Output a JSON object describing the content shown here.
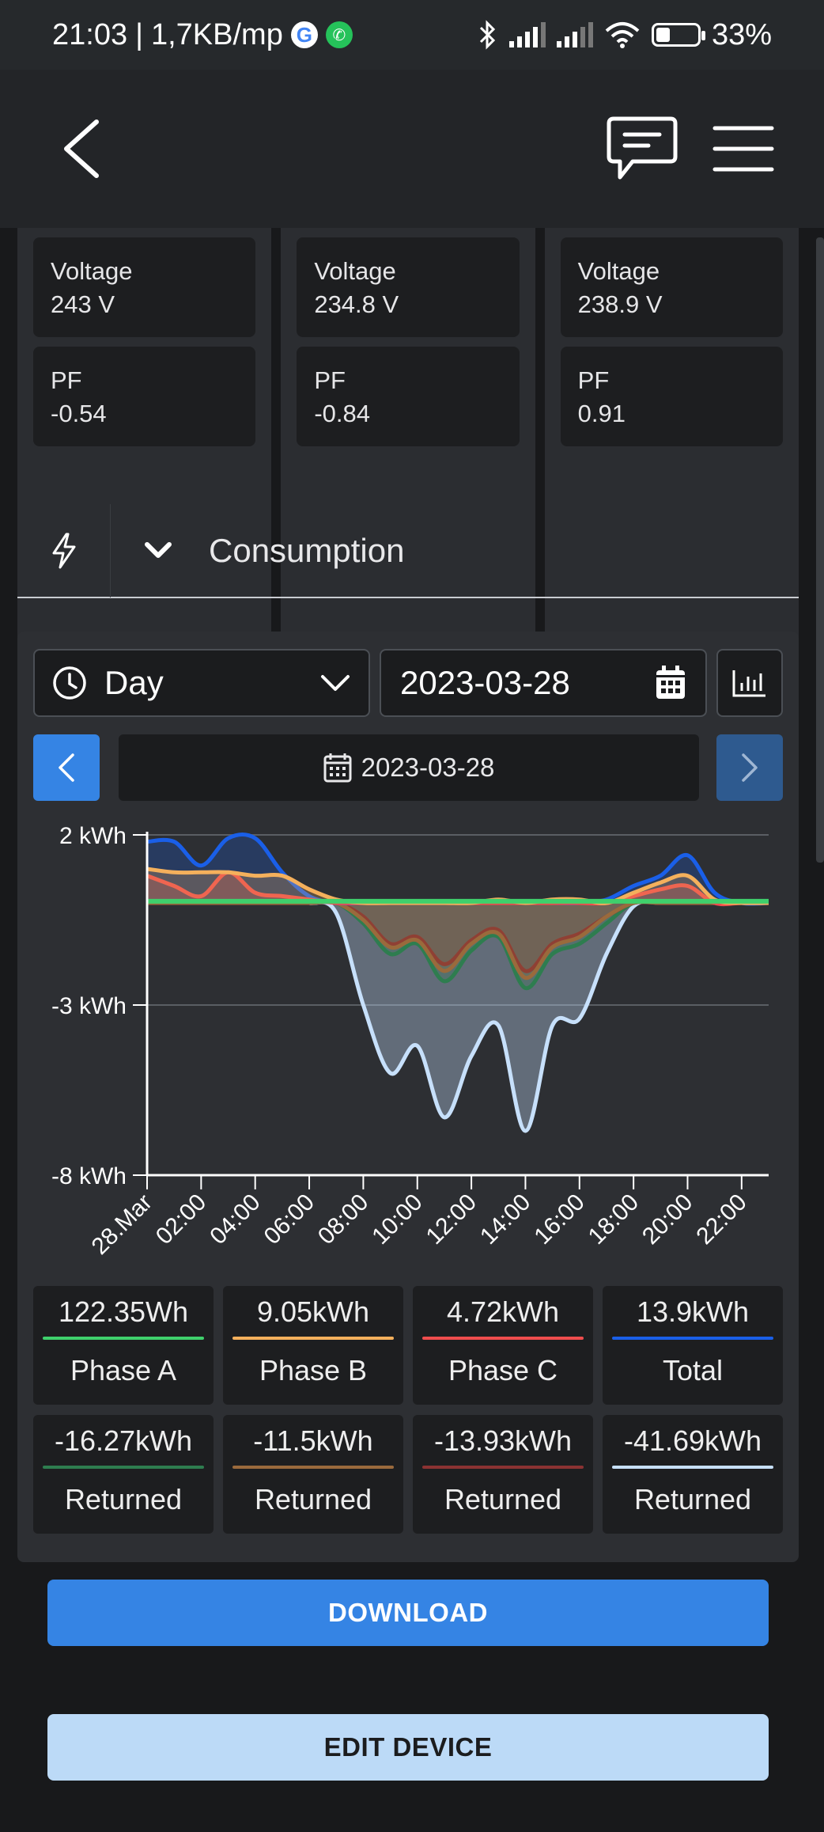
{
  "status": {
    "time": "21:03",
    "speed": "1,7KB/mp",
    "battery": "33%",
    "battery_level": 0.33
  },
  "appbar": {
    "back_icon": "chevron-left-icon",
    "chat_icon": "chat-bubble-icon",
    "menu_icon": "hamburger-menu-icon"
  },
  "phases": [
    {
      "voltage_label": "Voltage",
      "voltage": "243 V",
      "pf_label": "PF",
      "pf": "-0.54"
    },
    {
      "voltage_label": "Voltage",
      "voltage": "234.8 V",
      "pf_label": "PF",
      "pf": "-0.84"
    },
    {
      "voltage_label": "Voltage",
      "voltage": "238.9 V",
      "pf_label": "PF",
      "pf": "0.91"
    }
  ],
  "consumption": {
    "title": "Consumption"
  },
  "period": {
    "selected": "Day",
    "date_input": "2023-03-28",
    "current_date": "2023-03-28"
  },
  "colors": {
    "phaseA": "#3fd06c",
    "phaseB": "#f4b05c",
    "phaseC": "#ef4d4d",
    "total": "#1a5fe8",
    "retA": "#2e7d4f",
    "retB": "#9a6a3c",
    "retC": "#8b3232",
    "retTotal": "#c7e0fb",
    "primary": "#3584e4",
    "secondary": "#bcdaf7"
  },
  "chart_data": {
    "type": "area",
    "ylim": [
      -8,
      2
    ],
    "y_ticks": [
      "2 kWh",
      "-3 kWh",
      "-8 kWh"
    ],
    "x_ticks": [
      "28.Mar",
      "02:00",
      "04:00",
      "06:00",
      "08:00",
      "10:00",
      "12:00",
      "14:00",
      "16:00",
      "18:00",
      "20:00",
      "22:00"
    ],
    "x": [
      0,
      1,
      2,
      3,
      4,
      5,
      6,
      7,
      8,
      9,
      10,
      11,
      12,
      13,
      14,
      15,
      16,
      17,
      18,
      19,
      20,
      21,
      22,
      23
    ],
    "series": [
      {
        "name": "Total",
        "values": [
          1.8,
          1.8,
          1.1,
          1.9,
          1.9,
          0.9,
          0.2,
          0,
          0,
          0,
          0,
          0,
          0,
          0,
          0,
          0,
          0,
          0.1,
          0.5,
          0.8,
          1.4,
          0.3,
          0,
          0
        ]
      },
      {
        "name": "Phase B",
        "values": [
          1,
          0.9,
          0.9,
          0.9,
          0.8,
          0.8,
          0.4,
          0.1,
          0,
          0,
          0,
          0,
          0,
          0.1,
          0,
          0.1,
          0.1,
          0,
          0.3,
          0.6,
          0.8,
          0.1,
          0,
          0
        ]
      },
      {
        "name": "Phase C",
        "values": [
          0.8,
          0.5,
          0.2,
          0.9,
          0.3,
          0.2,
          0.1,
          0,
          0,
          0,
          0,
          0,
          0,
          0,
          0,
          0,
          0,
          0,
          0.2,
          0.4,
          0.5,
          0,
          0,
          0
        ]
      },
      {
        "name": "Phase A",
        "values": [
          0.05,
          0.05,
          0.05,
          0.05,
          0.05,
          0.05,
          0.05,
          0.05,
          0.05,
          0.05,
          0.05,
          0.05,
          0.05,
          0.05,
          0.05,
          0.05,
          0.05,
          0.05,
          0.05,
          0.05,
          0.05,
          0.05,
          0.05,
          0.05
        ]
      },
      {
        "name": "Returned Phase A",
        "values": [
          0,
          0,
          0,
          0,
          0,
          0,
          0,
          0,
          -0.6,
          -1.5,
          -1.2,
          -2.3,
          -1.4,
          -1,
          -2.5,
          -1.5,
          -1.2,
          -0.6,
          0,
          0,
          0,
          0,
          0,
          0
        ]
      },
      {
        "name": "Returned Phase B",
        "values": [
          0,
          0,
          0,
          0,
          0,
          0,
          0,
          0,
          -0.5,
          -1.3,
          -1.1,
          -2,
          -1.2,
          -0.9,
          -2.2,
          -1.3,
          -1,
          -0.4,
          0,
          0,
          0,
          0,
          0,
          0
        ]
      },
      {
        "name": "Returned Phase C",
        "values": [
          0,
          0,
          0,
          0,
          0,
          0,
          0,
          0,
          -0.4,
          -1.2,
          -1,
          -1.8,
          -1.1,
          -0.8,
          -2,
          -1.2,
          -0.9,
          -0.4,
          0,
          0,
          0,
          0,
          0,
          0
        ]
      },
      {
        "name": "Returned Total",
        "values": [
          0,
          0,
          0,
          0,
          0,
          0,
          0,
          -0.3,
          -3,
          -5,
          -4.2,
          -6.3,
          -4.5,
          -3.6,
          -6.7,
          -3.6,
          -3.4,
          -1.5,
          -0.1,
          0,
          0,
          0,
          0,
          0
        ]
      }
    ]
  },
  "legend": [
    {
      "value": "122.35Wh",
      "name": "Phase A"
    },
    {
      "value": "9.05kWh",
      "name": "Phase B"
    },
    {
      "value": "4.72kWh",
      "name": "Phase C"
    },
    {
      "value": "13.9kWh",
      "name": "Total"
    },
    {
      "value": "-16.27kWh",
      "name": "Returned"
    },
    {
      "value": "-11.5kWh",
      "name": "Returned"
    },
    {
      "value": "-13.93kWh",
      "name": "Returned"
    },
    {
      "value": "-41.69kWh",
      "name": "Returned"
    }
  ],
  "actions": {
    "download": "DOWNLOAD",
    "edit": "EDIT DEVICE"
  }
}
